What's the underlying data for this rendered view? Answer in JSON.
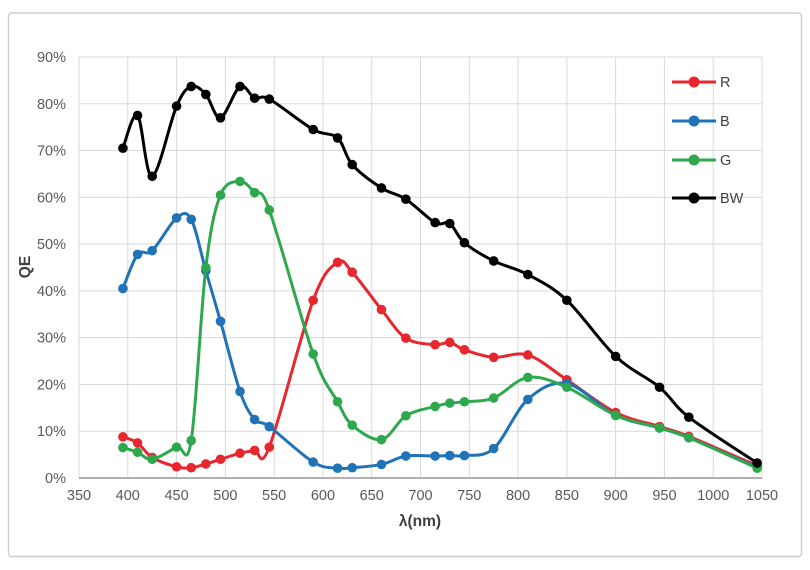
{
  "chart_data": {
    "type": "line",
    "title": "",
    "xlabel": "λ(nm)",
    "ylabel": "QE",
    "xlim": [
      350,
      1050
    ],
    "ylim": [
      0,
      90
    ],
    "grid": true,
    "legend_position": "top-right",
    "x_ticks": [
      350,
      400,
      450,
      500,
      550,
      600,
      650,
      700,
      750,
      800,
      850,
      900,
      950,
      1000,
      1050
    ],
    "y_tick_labels": [
      "0%",
      "10%",
      "20%",
      "30%",
      "40%",
      "50%",
      "60%",
      "70%",
      "80%",
      "90%"
    ],
    "y_tick_values": [
      0,
      10,
      20,
      30,
      40,
      50,
      60,
      70,
      80,
      90
    ],
    "x": [
      395,
      410,
      425,
      450,
      465,
      480,
      495,
      515,
      530,
      545,
      590,
      615,
      630,
      660,
      685,
      715,
      730,
      745,
      775,
      810,
      850,
      900,
      945,
      975,
      1045
    ],
    "series": [
      {
        "name": "R",
        "color": "#e8262d",
        "values": [
          8.8,
          7.5,
          4.4,
          2.4,
          2.2,
          3.0,
          4.0,
          5.3,
          5.9,
          6.6,
          38.0,
          46.1,
          44.0,
          36.0,
          29.9,
          28.5,
          29.0,
          27.4,
          25.8,
          26.3,
          21.0,
          14.0,
          11.0,
          8.9,
          2.6
        ]
      },
      {
        "name": "B",
        "color": "#2173b8",
        "values": [
          40.5,
          47.8,
          48.6,
          55.6,
          55.3,
          44.3,
          33.5,
          18.5,
          12.5,
          11.0,
          3.4,
          2.1,
          2.2,
          2.9,
          4.7,
          4.7,
          4.8,
          4.8,
          6.3,
          16.8,
          20.2,
          13.4,
          10.7,
          8.6,
          2.3
        ]
      },
      {
        "name": "G",
        "color": "#2ea84d",
        "values": [
          6.5,
          5.5,
          4.0,
          6.6,
          8.0,
          45.0,
          60.5,
          63.4,
          61.0,
          57.3,
          26.5,
          16.3,
          11.3,
          8.2,
          13.3,
          15.3,
          16.0,
          16.3,
          17.1,
          21.5,
          19.4,
          13.4,
          10.7,
          8.6,
          2.1
        ]
      },
      {
        "name": "BW",
        "color": "#000000",
        "values": [
          70.5,
          77.5,
          64.5,
          79.5,
          83.7,
          82.0,
          77.0,
          83.7,
          81.2,
          81.0,
          74.5,
          72.7,
          67.0,
          62.0,
          59.6,
          54.6,
          54.4,
          50.3,
          46.4,
          43.5,
          38.0,
          26.0,
          19.4,
          13.0,
          3.2
        ]
      }
    ],
    "style_colors": {
      "gridline": "#d9d9d9",
      "axis_line": "#a6a6a6",
      "tick_text": "#595959",
      "axis_title_text": "#404040",
      "legend_text": "#404040",
      "frame_border": "#cfcdcd",
      "background": "#ffffff"
    }
  }
}
